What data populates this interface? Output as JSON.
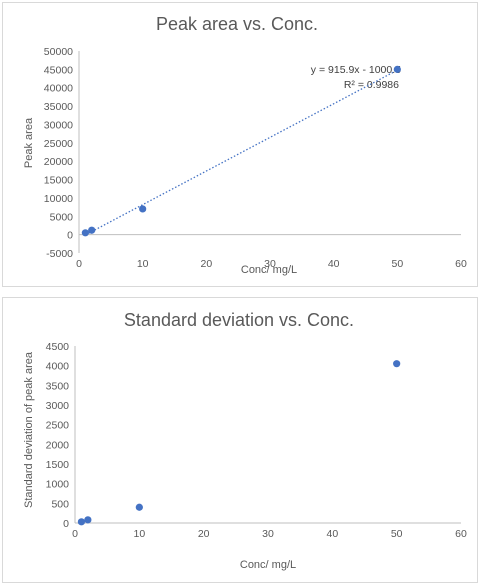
{
  "chart_data": [
    {
      "type": "scatter",
      "title": "Peak area vs. Conc.",
      "xlabel": "Conc/ mg/L",
      "ylabel": "Peak area",
      "xlim": [
        0,
        60
      ],
      "ylim": [
        -5000,
        50000
      ],
      "xticks": [
        "0",
        "10",
        "20",
        "30",
        "40",
        "50",
        "60"
      ],
      "yticks": [
        "50000",
        "45000",
        "40000",
        "35000",
        "30000",
        "25000",
        "20000",
        "15000",
        "10000",
        "5000",
        "0",
        "-5000"
      ],
      "grid": false,
      "series": [
        {
          "x": [
            1,
            2,
            10,
            50
          ],
          "y": [
            500,
            1200,
            7000,
            45000
          ]
        }
      ],
      "trendline": {
        "type": "linear",
        "slope": 915.9,
        "intercept": -1000.5,
        "style": "dotted"
      },
      "annotations": [
        "y = 915.9x - 1000.5",
        "R² = 0.9986"
      ],
      "point_color": "#4472c4"
    },
    {
      "type": "scatter",
      "title": "Standard deviation vs. Conc.",
      "xlabel": "Conc/ mg/L",
      "ylabel": "Standard deviation of peak area",
      "xlim": [
        0,
        60
      ],
      "ylim": [
        0,
        4500
      ],
      "xticks": [
        "0",
        "10",
        "20",
        "30",
        "40",
        "50",
        "60"
      ],
      "yticks": [
        "4500",
        "4000",
        "3500",
        "3000",
        "2500",
        "2000",
        "1500",
        "1000",
        "500",
        "0"
      ],
      "grid": false,
      "series": [
        {
          "x": [
            1,
            2,
            10,
            50
          ],
          "y": [
            30,
            80,
            400,
            4050
          ]
        }
      ],
      "point_color": "#4472c4"
    }
  ]
}
